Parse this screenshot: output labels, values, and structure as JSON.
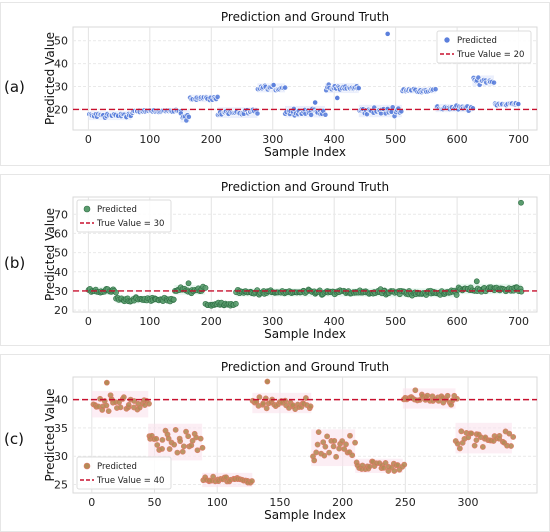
{
  "panels": [
    {
      "letter": "(a)"
    },
    {
      "letter": "(b)"
    },
    {
      "letter": "(c)"
    }
  ],
  "chart_data": [
    {
      "type": "scatter",
      "title": "Prediction and Ground Truth",
      "xlabel": "Sample Index",
      "ylabel": "Predicted Value",
      "xlim": [
        -25,
        730
      ],
      "ylim": [
        11,
        56
      ],
      "xticks": [
        0,
        100,
        200,
        300,
        400,
        500,
        600,
        700
      ],
      "yticks": [
        20,
        30,
        40,
        50
      ],
      "grid": true,
      "legend_position": "top-right",
      "series_name": "Predicted",
      "true_value": 20,
      "true_label": "True Value = 20",
      "colors": {
        "point": "#5b7fdc",
        "edge": "#ffffff",
        "line": "#c8102e",
        "band": "#dfe6fb"
      },
      "segments": [
        {
          "x0": 0,
          "x1": 70,
          "mean": 17.3,
          "spread": 1.1
        },
        {
          "x0": 70,
          "x1": 150,
          "mean": 19.2,
          "spread": 0.5
        },
        {
          "x0": 150,
          "x1": 165,
          "mean": 17.0,
          "spread": 1.5
        },
        {
          "x0": 165,
          "x1": 210,
          "mean": 24.8,
          "spread": 0.9
        },
        {
          "x0": 210,
          "x1": 275,
          "mean": 18.6,
          "spread": 1.3
        },
        {
          "x0": 275,
          "x1": 320,
          "mean": 29.4,
          "spread": 1.1
        },
        {
          "x0": 320,
          "x1": 385,
          "mean": 19.0,
          "spread": 1.4
        },
        {
          "x0": 385,
          "x1": 440,
          "mean": 29.3,
          "spread": 1.2
        },
        {
          "x0": 440,
          "x1": 510,
          "mean": 19.3,
          "spread": 1.5
        },
        {
          "x0": 510,
          "x1": 565,
          "mean": 28.4,
          "spread": 0.8
        },
        {
          "x0": 565,
          "x1": 625,
          "mean": 20.6,
          "spread": 1.0
        },
        {
          "x0": 625,
          "x1": 660,
          "mean": 32.5,
          "spread": 1.3
        },
        {
          "x0": 660,
          "x1": 700,
          "mean": 22.3,
          "spread": 0.7
        }
      ],
      "outliers": [
        {
          "x": 487,
          "y": 53
        },
        {
          "x": 405,
          "y": 25
        },
        {
          "x": 369,
          "y": 23
        }
      ]
    },
    {
      "type": "scatter",
      "title": "Prediction and Ground Truth",
      "xlabel": "Sample Index",
      "ylabel": "Predicted Value",
      "xlim": [
        -25,
        730
      ],
      "ylim": [
        19,
        79
      ],
      "xticks": [
        0,
        100,
        200,
        300,
        400,
        500,
        600,
        700
      ],
      "yticks": [
        20,
        30,
        40,
        50,
        60,
        70
      ],
      "grid": true,
      "legend_position": "top-left",
      "series_name": "Predicted",
      "true_value": 30,
      "true_label": "True Value = 30",
      "colors": {
        "point": "#5a9c6e",
        "edge": "#2f6e44",
        "line": "#c8102e",
        "band": "#d8f2e3"
      },
      "segments": [
        {
          "x0": 0,
          "x1": 45,
          "mean": 30.0,
          "spread": 1.2
        },
        {
          "x0": 45,
          "x1": 110,
          "mean": 25.5,
          "spread": 1.1
        },
        {
          "x0": 110,
          "x1": 140,
          "mean": 25.5,
          "spread": 1.0
        },
        {
          "x0": 140,
          "x1": 190,
          "mean": 30.5,
          "spread": 1.4
        },
        {
          "x0": 190,
          "x1": 240,
          "mean": 23.0,
          "spread": 0.8
        },
        {
          "x0": 240,
          "x1": 480,
          "mean": 29.2,
          "spread": 1.2
        },
        {
          "x0": 480,
          "x1": 600,
          "mean": 29.0,
          "spread": 1.3
        },
        {
          "x0": 600,
          "x1": 705,
          "mean": 31.0,
          "spread": 1.5
        }
      ],
      "outliers": [
        {
          "x": 704,
          "y": 76
        },
        {
          "x": 163,
          "y": 34
        },
        {
          "x": 632,
          "y": 35
        }
      ]
    },
    {
      "type": "scatter",
      "title": "Prediction and Ground Truth",
      "xlabel": "Sample Index",
      "ylabel": "Predicted Value",
      "xlim": [
        -15,
        355
      ],
      "ylim": [
        23.5,
        44
      ],
      "xticks": [
        0,
        50,
        100,
        150,
        200,
        250,
        300
      ],
      "yticks": [
        25,
        30,
        35,
        40
      ],
      "grid": true,
      "legend_position": "lower-left",
      "series_name": "Predicted",
      "true_value": 40,
      "true_label": "True Value = 40",
      "colors": {
        "point": "#b58a55",
        "edge": "#e07a6a",
        "line": "#c8102e",
        "band": "#fbe3ee"
      },
      "segments": [
        {
          "x0": 0,
          "x1": 45,
          "mean": 39.2,
          "spread": 1.3
        },
        {
          "x0": 45,
          "x1": 88,
          "mean": 32.5,
          "spread": 1.8
        },
        {
          "x0": 88,
          "x1": 128,
          "mean": 25.8,
          "spread": 0.7
        },
        {
          "x0": 128,
          "x1": 175,
          "mean": 39.4,
          "spread": 1.0
        },
        {
          "x0": 175,
          "x1": 210,
          "mean": 31.5,
          "spread": 1.8
        },
        {
          "x0": 210,
          "x1": 248,
          "mean": 28.3,
          "spread": 0.7
        },
        {
          "x0": 248,
          "x1": 290,
          "mean": 40.2,
          "spread": 1.0
        },
        {
          "x0": 290,
          "x1": 335,
          "mean": 33.2,
          "spread": 1.5
        }
      ],
      "outliers": [
        {
          "x": 12,
          "y": 43
        },
        {
          "x": 140,
          "y": 43.2
        }
      ]
    }
  ]
}
